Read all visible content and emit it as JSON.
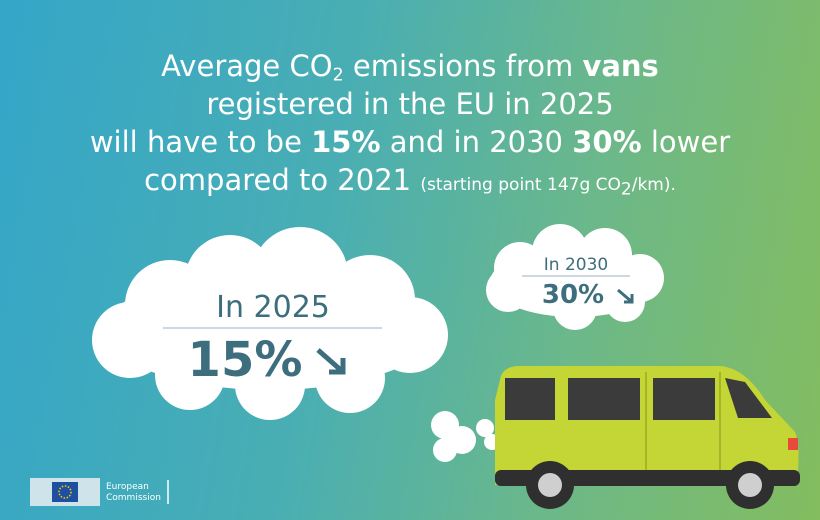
{
  "headline": {
    "lines": [
      [
        "Average CO",
        "2",
        " emissions from ",
        "vans"
      ],
      [
        "registered in the EU in 2025"
      ],
      [
        "will have to be ",
        "15%",
        " and in 2030 ",
        "30%",
        " lower"
      ],
      [
        "compared to 2021 ",
        "(starting point 147g CO",
        "2",
        "/km)."
      ]
    ]
  },
  "cloud_2025": {
    "label": "In 2025",
    "value": "15%"
  },
  "cloud_2030": {
    "label": "In 2030",
    "value": "30%"
  },
  "logo": {
    "line1": "European",
    "line2": "Commission"
  }
}
